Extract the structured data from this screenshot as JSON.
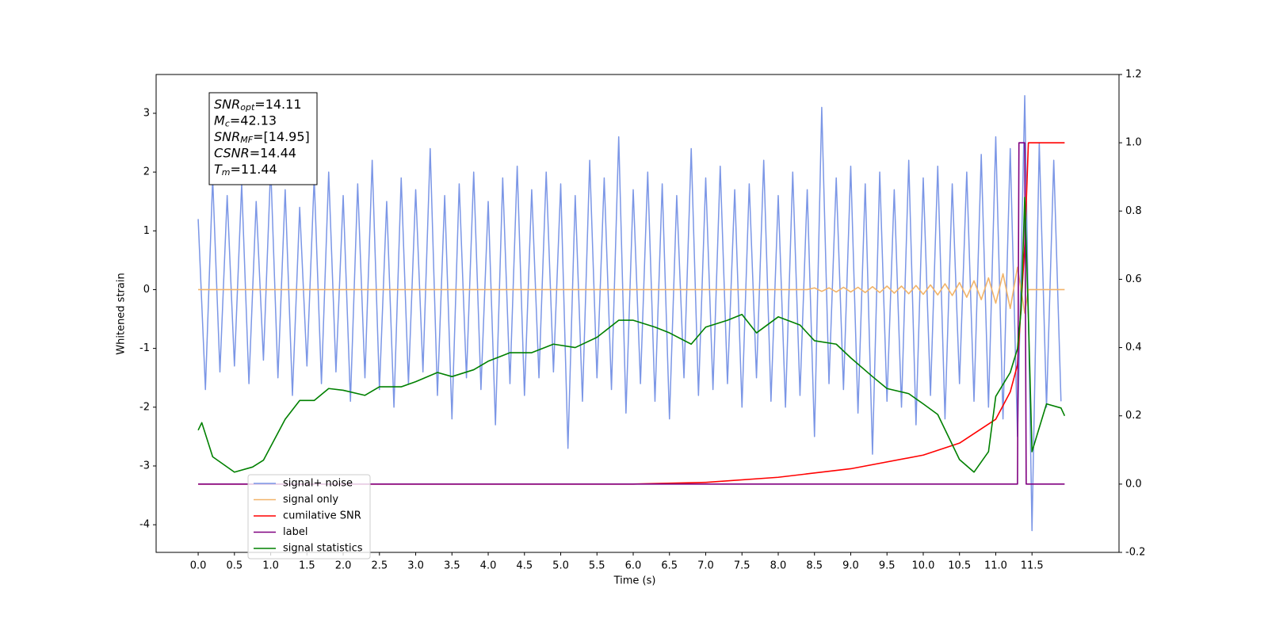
{
  "chart_data": {
    "type": "line",
    "xlabel": "Time (s)",
    "ylabel": "Whitened strain",
    "xlim": [
      -0.58,
      12.7
    ],
    "ylim": [
      -4.47,
      3.66
    ],
    "y2lim": [
      -0.2,
      1.2
    ],
    "xticks": [
      {
        "value": 0,
        "label": "0.0"
      },
      0.5,
      {
        "value": 1,
        "label": "1.0"
      },
      1.5,
      {
        "value": 2,
        "label": "2.0"
      },
      2.5,
      {
        "value": 3,
        "label": "3.0"
      },
      3.5,
      {
        "value": 4,
        "label": "4.0"
      },
      4.5,
      {
        "value": 5,
        "label": "5.0"
      },
      5.5,
      {
        "value": 6,
        "label": "6.0"
      },
      6.5,
      {
        "value": 7,
        "label": "7.0"
      },
      7.5,
      {
        "value": 8,
        "label": "8.0"
      },
      8.5,
      {
        "value": 9,
        "label": "9.0"
      },
      9.5,
      {
        "value": 10,
        "label": "10.0"
      },
      10.5,
      {
        "value": 11,
        "label": "11.0"
      },
      11.5
    ],
    "yticks": [
      -4,
      -3,
      -2,
      -1,
      0,
      1,
      2,
      3
    ],
    "y2ticks": [
      -0.2,
      {
        "value": 0,
        "label": "0.0"
      },
      0.2,
      0.4,
      0.6,
      0.8,
      {
        "value": 1,
        "label": "1.0"
      },
      1.2
    ],
    "annotations": [
      {
        "main": "SNR",
        "sub": "opt",
        "rest": "=14.11"
      },
      {
        "main": "M",
        "sub": "c",
        "rest": "=42.13"
      },
      {
        "main": "SNR",
        "sub": "MF",
        "rest": "=[14.95]"
      },
      {
        "main": "CSNR",
        "sub": "",
        "rest": "=14.44"
      },
      {
        "main": "T",
        "sub": "m",
        "rest": "=11.44"
      }
    ],
    "series": [
      {
        "name": "signal+ noise",
        "color": "#7b96e6",
        "axis": "y",
        "x": [
          0.0,
          0.1,
          0.2,
          0.3,
          0.4,
          0.5,
          0.6,
          0.7,
          0.8,
          0.9,
          1.0,
          1.1,
          1.2,
          1.3,
          1.4,
          1.5,
          1.6,
          1.7,
          1.8,
          1.9,
          2.0,
          2.1,
          2.2,
          2.3,
          2.4,
          2.5,
          2.6,
          2.7,
          2.8,
          2.9,
          3.0,
          3.1,
          3.2,
          3.3,
          3.4,
          3.5,
          3.6,
          3.7,
          3.8,
          3.9,
          4.0,
          4.1,
          4.2,
          4.3,
          4.4,
          4.5,
          4.6,
          4.7,
          4.8,
          4.9,
          5.0,
          5.1,
          5.2,
          5.3,
          5.4,
          5.5,
          5.6,
          5.7,
          5.8,
          5.9,
          6.0,
          6.1,
          6.2,
          6.3,
          6.4,
          6.5,
          6.6,
          6.7,
          6.8,
          6.9,
          7.0,
          7.1,
          7.2,
          7.3,
          7.4,
          7.5,
          7.6,
          7.7,
          7.8,
          7.9,
          8.0,
          8.1,
          8.2,
          8.3,
          8.4,
          8.5,
          8.6,
          8.7,
          8.8,
          8.9,
          9.0,
          9.1,
          9.2,
          9.3,
          9.4,
          9.5,
          9.6,
          9.7,
          9.8,
          9.9,
          10.0,
          10.1,
          10.2,
          10.3,
          10.4,
          10.5,
          10.6,
          10.7,
          10.8,
          10.9,
          11.0,
          11.1,
          11.2,
          11.3,
          11.4,
          11.5,
          11.6,
          11.7,
          11.8,
          11.9
        ],
        "values": [
          1.2,
          -1.7,
          1.9,
          -1.4,
          1.6,
          -1.3,
          1.8,
          -1.6,
          1.5,
          -1.2,
          2.1,
          -1.5,
          1.7,
          -1.8,
          1.4,
          -1.3,
          1.9,
          -1.6,
          2.0,
          -1.4,
          1.6,
          -1.9,
          1.8,
          -1.5,
          2.2,
          -1.7,
          1.5,
          -2.0,
          1.9,
          -1.6,
          1.7,
          -1.4,
          2.4,
          -1.8,
          1.6,
          -2.2,
          1.8,
          -1.5,
          2.0,
          -1.7,
          1.5,
          -2.3,
          1.9,
          -1.6,
          2.1,
          -1.8,
          1.7,
          -1.5,
          2.0,
          -1.4,
          1.8,
          -2.7,
          1.6,
          -1.9,
          2.2,
          -1.5,
          1.9,
          -1.7,
          2.6,
          -2.1,
          1.7,
          -1.6,
          2.0,
          -1.9,
          1.8,
          -2.2,
          1.6,
          -1.5,
          2.4,
          -1.8,
          1.9,
          -1.7,
          2.1,
          -1.6,
          1.7,
          -2.0,
          1.8,
          -1.5,
          2.2,
          -1.9,
          1.6,
          -2.0,
          2.0,
          -1.8,
          1.7,
          -2.5,
          3.1,
          -1.6,
          1.9,
          -1.7,
          2.1,
          -2.1,
          1.8,
          -2.8,
          2.0,
          -1.9,
          1.7,
          -2.0,
          2.2,
          -2.3,
          1.9,
          -1.8,
          2.1,
          -2.2,
          1.8,
          -1.6,
          2.0,
          -1.9,
          2.3,
          -2.0,
          2.6,
          -2.2,
          2.4,
          -2.5,
          3.3,
          -4.1,
          2.5,
          -2.0,
          2.2,
          -1.9
        ]
      },
      {
        "name": "signal only",
        "color": "#f2b46a",
        "axis": "y",
        "x": [
          0.0,
          8.4,
          8.5,
          8.6,
          8.7,
          8.8,
          8.9,
          9.0,
          9.1,
          9.2,
          9.3,
          9.4,
          9.5,
          9.6,
          9.7,
          9.8,
          9.9,
          10.0,
          10.1,
          10.2,
          10.3,
          10.4,
          10.5,
          10.6,
          10.7,
          10.8,
          10.9,
          11.0,
          11.1,
          11.2,
          11.3,
          11.4,
          11.45,
          11.95
        ],
        "values": [
          0,
          0,
          0.03,
          -0.03,
          0.03,
          -0.04,
          0.04,
          -0.04,
          0.04,
          -0.05,
          0.05,
          -0.05,
          0.06,
          -0.06,
          0.06,
          -0.07,
          0.07,
          -0.08,
          0.08,
          -0.09,
          0.1,
          -0.1,
          0.12,
          -0.13,
          0.15,
          -0.17,
          0.2,
          -0.23,
          0.27,
          -0.32,
          0.38,
          -0.4,
          0,
          0
        ]
      },
      {
        "name": "cumilative SNR",
        "color": "#ff0000",
        "axis": "y2",
        "x": [
          0.0,
          6.0,
          7.0,
          8.0,
          9.0,
          10.0,
          10.5,
          11.0,
          11.2,
          11.3,
          11.4,
          11.45,
          11.95
        ],
        "values": [
          0,
          0,
          0.005,
          0.02,
          0.045,
          0.085,
          0.12,
          0.19,
          0.27,
          0.35,
          0.7,
          1.0,
          1.0
        ]
      },
      {
        "name": "label",
        "color": "#800080",
        "axis": "y2",
        "x": [
          0.0,
          11.3,
          11.32,
          11.4,
          11.42,
          11.95
        ],
        "values": [
          0,
          0,
          1,
          1,
          0,
          0
        ]
      },
      {
        "name": "signal statistics",
        "color": "#008000",
        "axis": "y2",
        "x": [
          0.0,
          0.05,
          0.2,
          0.5,
          0.75,
          0.9,
          1.2,
          1.4,
          1.6,
          1.8,
          2.0,
          2.3,
          2.5,
          2.8,
          3.0,
          3.3,
          3.5,
          3.8,
          4.0,
          4.3,
          4.6,
          4.9,
          5.2,
          5.5,
          5.8,
          6.0,
          6.3,
          6.5,
          6.8,
          7.0,
          7.3,
          7.5,
          7.7,
          8.0,
          8.3,
          8.5,
          8.8,
          9.0,
          9.3,
          9.5,
          9.8,
          10.0,
          10.2,
          10.5,
          10.7,
          10.9,
          11.0,
          11.2,
          11.3,
          11.35,
          11.4,
          11.45,
          11.5,
          11.6,
          11.7,
          11.9,
          11.95
        ],
        "values": [
          0.158,
          0.18,
          0.08,
          0.035,
          0.05,
          0.07,
          0.19,
          0.245,
          0.245,
          0.28,
          0.275,
          0.26,
          0.285,
          0.285,
          0.3,
          0.327,
          0.315,
          0.335,
          0.36,
          0.385,
          0.385,
          0.41,
          0.4,
          0.43,
          0.48,
          0.48,
          0.46,
          0.443,
          0.41,
          0.46,
          0.48,
          0.497,
          0.443,
          0.49,
          0.466,
          0.42,
          0.41,
          0.37,
          0.315,
          0.28,
          0.265,
          0.235,
          0.204,
          0.072,
          0.035,
          0.095,
          0.257,
          0.327,
          0.397,
          0.51,
          0.84,
          0.49,
          0.095,
          0.165,
          0.235,
          0.223,
          0.2
        ]
      }
    ]
  }
}
